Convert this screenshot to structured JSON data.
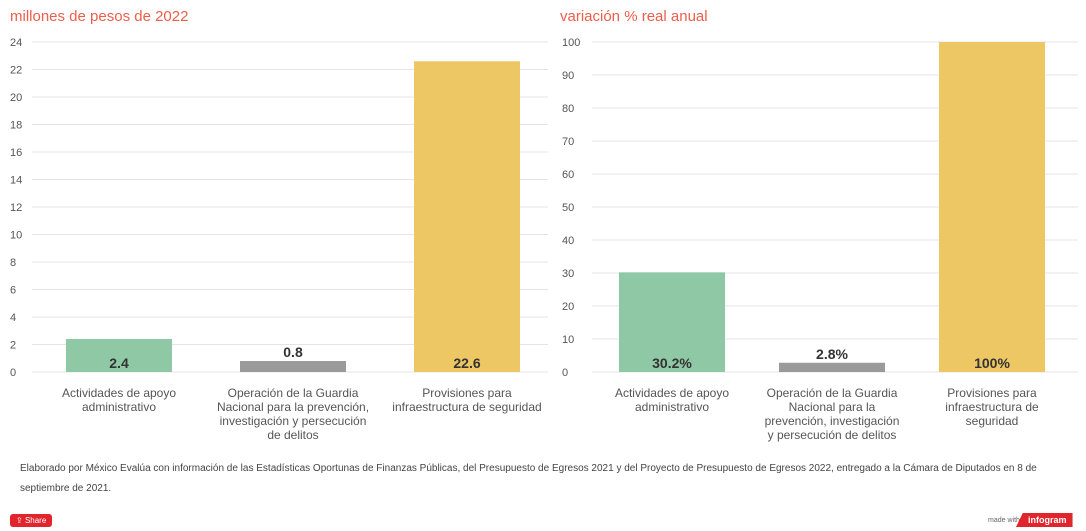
{
  "chart_data": [
    {
      "type": "bar",
      "title": "millones de pesos de 2022",
      "categories": [
        [
          "Actividades de apoyo",
          "administrativo"
        ],
        [
          "Operación de la Guardia",
          "Nacional para la prevención,",
          "investigación y persecución",
          "de delitos"
        ],
        [
          "Provisiones para",
          "infraestructura de seguridad"
        ]
      ],
      "values": [
        2.4,
        0.8,
        22.6
      ],
      "data_labels": [
        "2.4",
        "0.8",
        "22.6"
      ],
      "colors": [
        "#8ec8a4",
        "#9a9a9a",
        "#ecc763"
      ],
      "ylim": [
        0,
        24
      ],
      "yticks": [
        "0",
        "2",
        "4",
        "6",
        "8",
        "10",
        "12",
        "14",
        "16",
        "18",
        "20",
        "22",
        "24"
      ],
      "grid": true
    },
    {
      "type": "bar",
      "title": "variación % real anual",
      "categories": [
        [
          "Actividades de apoyo",
          "administrativo"
        ],
        [
          "Operación de la Guardia",
          "Nacional para la",
          "prevención, investigación",
          "y persecución de delitos"
        ],
        [
          "Provisiones para",
          "infraestructura de",
          "seguridad"
        ]
      ],
      "values": [
        30.2,
        2.8,
        100
      ],
      "data_labels": [
        "30.2%",
        "2.8%",
        "100%"
      ],
      "colors": [
        "#8ec8a4",
        "#9a9a9a",
        "#ecc763"
      ],
      "ylim": [
        0,
        100
      ],
      "yticks": [
        "0",
        "10",
        "20",
        "30",
        "40",
        "50",
        "60",
        "70",
        "80",
        "90",
        "100"
      ],
      "grid": true
    }
  ],
  "footer": {
    "source": "Elaborado por México Evalúa con información de las Estadísticas Oportunas de Finanzas Públicas, del Presupuesto de Egresos 2021 y del Proyecto de Presupuesto de Egresos 2022, entregado a la Cámara de Diputados en 8 de septiembre de 2021.",
    "share_label": "Share",
    "made_with": "made with",
    "brand": "infogram"
  }
}
